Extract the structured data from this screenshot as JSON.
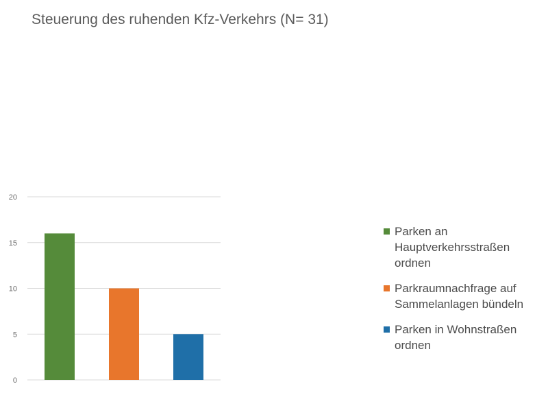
{
  "chart_data": {
    "type": "bar",
    "title": "Steuerung des ruhenden Kfz-Verkehrs (N= 31)",
    "categories": [
      "Parken an Hauptverkehrsstraßen ordnen",
      "Parkraumnachfrage auf Sammelanlagen bündeln",
      "Parken in Wohnstraßen ordnen"
    ],
    "values": [
      16,
      10,
      5
    ],
    "colors": [
      "#558b3a",
      "#e8762c",
      "#1f6fa8"
    ],
    "yticks": [
      0,
      5,
      10,
      15,
      20
    ],
    "ylim": [
      0,
      20
    ],
    "grid": true,
    "legend_position": "right"
  }
}
